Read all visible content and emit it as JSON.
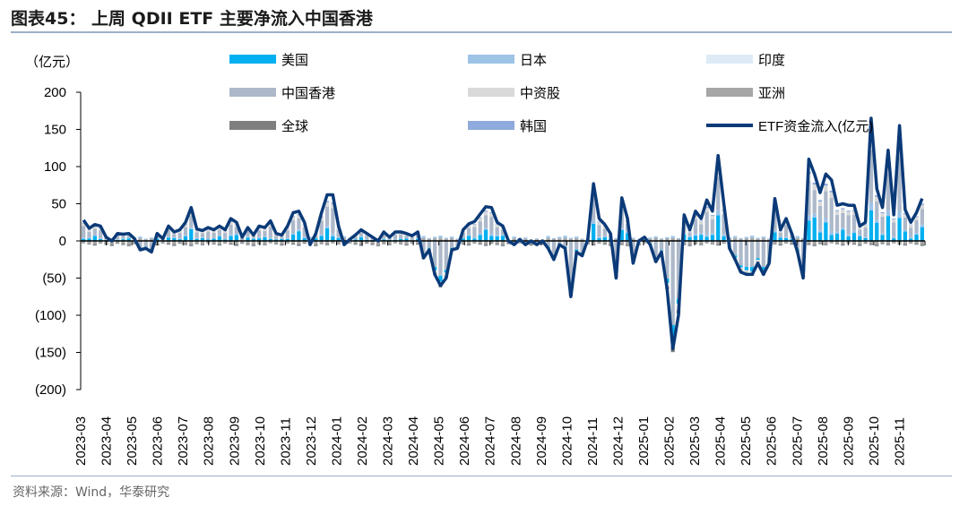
{
  "figure": {
    "title": "图表45：  上周 QDII ETF 主要净流入中国香港",
    "source": "资料来源：Wind，华泰研究"
  },
  "chart_data": {
    "type": "bar",
    "stacked": true,
    "unit_label": "（亿元）",
    "ylim": [
      -200,
      200
    ],
    "yticks": [
      200,
      150,
      100,
      50,
      0,
      -50,
      -100,
      -150,
      -200
    ],
    "ytick_labels": [
      "200",
      "150",
      "100",
      "50",
      "0",
      "(50)",
      "(100)",
      "(150)",
      "(200)"
    ],
    "xtick_labels": [
      "2023-03",
      "2023-04",
      "2023-05",
      "2023-06",
      "2023-07",
      "2023-08",
      "2023-09",
      "2023-10",
      "2023-11",
      "2023-12",
      "2024-01",
      "2024-02",
      "2024-03",
      "2024-04",
      "2024-05",
      "2024-06",
      "2024-07",
      "2024-08",
      "2024-09",
      "2024-10",
      "2024-11",
      "2024-12",
      "2025-01",
      "2025-02",
      "2025-03",
      "2025-04",
      "2025-05",
      "2025-06",
      "2025-07",
      "2025-08",
      "2025-09",
      "2025-10",
      "2025-11"
    ],
    "weeks_per_month": 4,
    "legend": [
      {
        "name": "美国",
        "color": "#00b0f0",
        "kind": "bar"
      },
      {
        "name": "日本",
        "color": "#9dc3e6",
        "kind": "bar"
      },
      {
        "name": "印度",
        "color": "#deebf7",
        "kind": "bar"
      },
      {
        "name": "中国香港",
        "color": "#adb9ca",
        "kind": "bar"
      },
      {
        "name": "中资股",
        "color": "#d9d9d9",
        "kind": "bar"
      },
      {
        "name": "亚洲",
        "color": "#a6a6a6",
        "kind": "bar"
      },
      {
        "name": "全球",
        "color": "#7f7f7f",
        "kind": "bar"
      },
      {
        "name": "韩国",
        "color": "#8faadc",
        "kind": "bar"
      },
      {
        "name": "ETF资金流入(亿元)",
        "color": "#0b3a78",
        "kind": "line"
      }
    ],
    "line_anchors": [
      {
        "x": 0,
        "y": 28
      },
      {
        "x": 1,
        "y": 17
      },
      {
        "x": 2,
        "y": 22
      },
      {
        "x": 3,
        "y": 20
      },
      {
        "x": 4,
        "y": 5
      },
      {
        "x": 5,
        "y": 0
      },
      {
        "x": 6,
        "y": 10
      },
      {
        "x": 7,
        "y": 9
      },
      {
        "x": 8,
        "y": 10
      },
      {
        "x": 9,
        "y": 3
      },
      {
        "x": 10,
        "y": -12
      },
      {
        "x": 11,
        "y": -10
      },
      {
        "x": 12,
        "y": -15
      },
      {
        "x": 13,
        "y": 10
      },
      {
        "x": 14,
        "y": 3
      },
      {
        "x": 15,
        "y": 20
      },
      {
        "x": 16,
        "y": 12
      },
      {
        "x": 17,
        "y": 15
      },
      {
        "x": 18,
        "y": 25
      },
      {
        "x": 19,
        "y": 45
      },
      {
        "x": 20,
        "y": 16
      },
      {
        "x": 21,
        "y": 14
      },
      {
        "x": 22,
        "y": 18
      },
      {
        "x": 23,
        "y": 15
      },
      {
        "x": 24,
        "y": 20
      },
      {
        "x": 25,
        "y": 15
      },
      {
        "x": 26,
        "y": 30
      },
      {
        "x": 27,
        "y": 25
      },
      {
        "x": 28,
        "y": 5
      },
      {
        "x": 29,
        "y": 18
      },
      {
        "x": 30,
        "y": 8
      },
      {
        "x": 31,
        "y": 20
      },
      {
        "x": 32,
        "y": 18
      },
      {
        "x": 33,
        "y": 27
      },
      {
        "x": 34,
        "y": 10
      },
      {
        "x": 35,
        "y": 8
      },
      {
        "x": 36,
        "y": 20
      },
      {
        "x": 37,
        "y": 38
      },
      {
        "x": 38,
        "y": 40
      },
      {
        "x": 39,
        "y": 25
      },
      {
        "x": 40,
        "y": -5
      },
      {
        "x": 41,
        "y": 10
      },
      {
        "x": 42,
        "y": 38
      },
      {
        "x": 43,
        "y": 62
      },
      {
        "x": 44,
        "y": 62
      },
      {
        "x": 45,
        "y": 20
      },
      {
        "x": 46,
        "y": -5
      },
      {
        "x": 47,
        "y": 2
      },
      {
        "x": 48,
        "y": 8
      },
      {
        "x": 49,
        "y": 15
      },
      {
        "x": 50,
        "y": 10
      },
      {
        "x": 51,
        "y": 5
      },
      {
        "x": 52,
        "y": 0
      },
      {
        "x": 53,
        "y": 12
      },
      {
        "x": 54,
        "y": 5
      },
      {
        "x": 55,
        "y": 12
      },
      {
        "x": 56,
        "y": 12
      },
      {
        "x": 57,
        "y": 10
      },
      {
        "x": 58,
        "y": 7
      },
      {
        "x": 59,
        "y": 12
      },
      {
        "x": 60,
        "y": -23
      },
      {
        "x": 61,
        "y": -12
      },
      {
        "x": 62,
        "y": -45
      },
      {
        "x": 63,
        "y": -60
      },
      {
        "x": 64,
        "y": -50
      },
      {
        "x": 65,
        "y": -12
      },
      {
        "x": 66,
        "y": -10
      },
      {
        "x": 67,
        "y": 15
      },
      {
        "x": 68,
        "y": 23
      },
      {
        "x": 69,
        "y": 26
      },
      {
        "x": 70,
        "y": 36
      },
      {
        "x": 71,
        "y": 46
      },
      {
        "x": 72,
        "y": 45
      },
      {
        "x": 73,
        "y": 25
      },
      {
        "x": 74,
        "y": 20
      },
      {
        "x": 75,
        "y": 0
      },
      {
        "x": 76,
        "y": -5
      },
      {
        "x": 77,
        "y": 2
      },
      {
        "x": 78,
        "y": -5
      },
      {
        "x": 79,
        "y": 0
      },
      {
        "x": 80,
        "y": -5
      },
      {
        "x": 81,
        "y": 0
      },
      {
        "x": 82,
        "y": -10
      },
      {
        "x": 83,
        "y": -25
      },
      {
        "x": 84,
        "y": -5
      },
      {
        "x": 85,
        "y": -10
      },
      {
        "x": 86,
        "y": -75
      },
      {
        "x": 87,
        "y": -15
      },
      {
        "x": 88,
        "y": -20
      },
      {
        "x": 89,
        "y": 2
      },
      {
        "x": 90,
        "y": 77
      },
      {
        "x": 91,
        "y": 30
      },
      {
        "x": 92,
        "y": 22
      },
      {
        "x": 93,
        "y": 10
      },
      {
        "x": 94,
        "y": -50
      },
      {
        "x": 95,
        "y": 58
      },
      {
        "x": 96,
        "y": 30
      },
      {
        "x": 97,
        "y": -30
      },
      {
        "x": 98,
        "y": 0
      },
      {
        "x": 99,
        "y": 5
      },
      {
        "x": 100,
        "y": -5
      },
      {
        "x": 101,
        "y": -28
      },
      {
        "x": 102,
        "y": -15
      },
      {
        "x": 103,
        "y": -65
      },
      {
        "x": 104,
        "y": -145
      },
      {
        "x": 105,
        "y": -100
      },
      {
        "x": 106,
        "y": 35
      },
      {
        "x": 107,
        "y": 15
      },
      {
        "x": 108,
        "y": 40
      },
      {
        "x": 109,
        "y": 30
      },
      {
        "x": 110,
        "y": 55
      },
      {
        "x": 111,
        "y": 40
      },
      {
        "x": 112,
        "y": 115
      },
      {
        "x": 113,
        "y": 50
      },
      {
        "x": 114,
        "y": -10
      },
      {
        "x": 115,
        "y": -25
      },
      {
        "x": 116,
        "y": -42
      },
      {
        "x": 117,
        "y": -45
      },
      {
        "x": 118,
        "y": -45
      },
      {
        "x": 119,
        "y": -30
      },
      {
        "x": 120,
        "y": -45
      },
      {
        "x": 121,
        "y": -30
      },
      {
        "x": 122,
        "y": 57
      },
      {
        "x": 123,
        "y": 15
      },
      {
        "x": 124,
        "y": 30
      },
      {
        "x": 125,
        "y": 10
      },
      {
        "x": 126,
        "y": -15
      },
      {
        "x": 127,
        "y": -50
      },
      {
        "x": 128,
        "y": 110
      },
      {
        "x": 129,
        "y": 90
      },
      {
        "x": 130,
        "y": 65
      },
      {
        "x": 131,
        "y": 90
      },
      {
        "x": 132,
        "y": 82
      },
      {
        "x": 133,
        "y": 48
      },
      {
        "x": 134,
        "y": 50
      },
      {
        "x": 135,
        "y": 48
      },
      {
        "x": 136,
        "y": 48
      },
      {
        "x": 137,
        "y": 20
      },
      {
        "x": 138,
        "y": 25
      },
      {
        "x": 139,
        "y": 165
      },
      {
        "x": 140,
        "y": 70
      },
      {
        "x": 141,
        "y": 45
      },
      {
        "x": 142,
        "y": 122
      },
      {
        "x": 143,
        "y": 35
      },
      {
        "x": 144,
        "y": 155
      },
      {
        "x": 145,
        "y": 42
      },
      {
        "x": 146,
        "y": 25
      },
      {
        "x": 147,
        "y": 38
      },
      {
        "x": 148,
        "y": 57
      }
    ]
  }
}
